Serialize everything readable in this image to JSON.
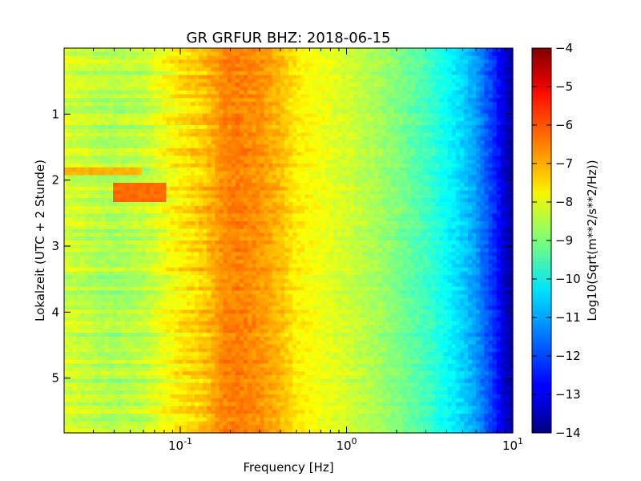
{
  "chart_data": {
    "type": "heatmap",
    "title": "GR GRFUR BHZ: 2018-06-15",
    "xlabel": "Frequency [Hz]",
    "ylabel": "Lokalzeit (UTC + 2 Stunde)",
    "colorbar_label": "Log10(Sqrt(m**2/s**2/Hz))",
    "x_scale": "log",
    "xlim": [
      0.02,
      10
    ],
    "ylim": [
      5.83,
      0
    ],
    "clim": [
      -14,
      -4
    ],
    "colormap": "jet",
    "x_tick_labels": [
      {
        "base": "10",
        "exp": "-1",
        "value": 0.1
      },
      {
        "base": "10",
        "exp": "0",
        "value": 1
      },
      {
        "base": "10",
        "exp": "1",
        "value": 10
      }
    ],
    "y_ticks": [
      1,
      2,
      3,
      4,
      5
    ],
    "y_tick_labels": [
      "1",
      "2",
      "3",
      "4",
      "5"
    ],
    "colorbar_ticks": [
      -4,
      -5,
      -6,
      -7,
      -8,
      -9,
      -10,
      -11,
      -12,
      -13,
      -14
    ],
    "colorbar_tick_labels": [
      "−4",
      "−5",
      "−6",
      "−7",
      "−8",
      "−9",
      "−10",
      "−11",
      "−12",
      "−13",
      "−14"
    ],
    "frequency_profile": {
      "frequency_hz": [
        0.02,
        0.04,
        0.06,
        0.08,
        0.1,
        0.14,
        0.18,
        0.22,
        0.3,
        0.4,
        0.5,
        0.7,
        1.0,
        1.5,
        2.0,
        3.0,
        4.0,
        5.0,
        6.0,
        7.0,
        8.0,
        9.0,
        10.0
      ],
      "log10_psd": [
        -8.2,
        -8.6,
        -8.4,
        -7.9,
        -7.6,
        -7.2,
        -6.6,
        -6.5,
        -6.7,
        -7.1,
        -7.6,
        -7.9,
        -8.2,
        -8.6,
        -9.0,
        -9.6,
        -10.2,
        -10.7,
        -11.2,
        -11.9,
        -12.5,
        -13.3,
        -13.8
      ]
    },
    "features": [
      {
        "hours": [
          2.05,
          2.35
        ],
        "freq_hz": [
          0.04,
          0.08
        ],
        "log10_psd": -6.3
      },
      {
        "hours": [
          1.8,
          1.95
        ],
        "freq_hz": [
          0.02,
          0.06
        ],
        "log10_psd": -7.0
      }
    ]
  }
}
